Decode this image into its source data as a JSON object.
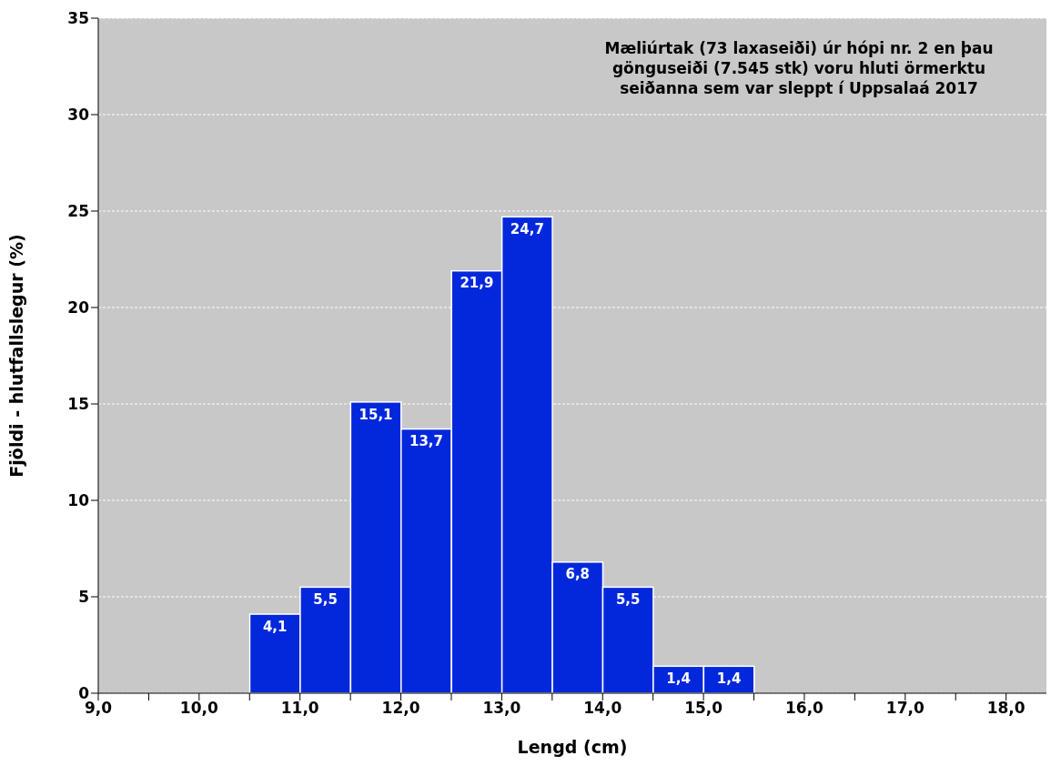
{
  "chart_data": {
    "type": "histogram",
    "xlabel": "Lengd (cm)",
    "ylabel": "Fjöldi - hlutfallslegur (%)",
    "annotations": [
      "Mæliúrtak (73 laxaseiði) úr hópi nr. 2 en þau gönguseiði (7.545 stk) voru hluti örmerktu seiðanna sem var sleppt í Uppsalaá 2017"
    ],
    "bins": [
      10.5,
      11.0,
      11.5,
      12.0,
      12.5,
      13.0,
      13.5,
      14.0,
      14.5,
      15.0,
      15.5
    ],
    "values": [
      4.1,
      5.5,
      15.1,
      13.7,
      21.9,
      24.7,
      6.8,
      5.5,
      1.4,
      1.4
    ],
    "value_labels": [
      "4,1",
      "5,5",
      "15,1",
      "13,7",
      "21,9",
      "24,7",
      "6,8",
      "5,5",
      "1,4",
      "1,4"
    ],
    "color": "#0328dc",
    "xlim": [
      9,
      18.4
    ],
    "xticks": [
      {
        "value": 9,
        "label": "9,0"
      },
      {
        "value": 9.5,
        "label": null
      },
      {
        "value": 10,
        "label": "10,0"
      },
      {
        "value": 10.5,
        "label": null
      },
      {
        "value": 11,
        "label": "11,0"
      },
      {
        "value": 11.5,
        "label": null
      },
      {
        "value": 12,
        "label": "12,0"
      },
      {
        "value": 12.5,
        "label": null
      },
      {
        "value": 13,
        "label": "13,0"
      },
      {
        "value": 13.5,
        "label": null
      },
      {
        "value": 14,
        "label": "14,0"
      },
      {
        "value": 14.5,
        "label": null
      },
      {
        "value": 15,
        "label": "15,0"
      },
      {
        "value": 15.5,
        "label": null
      },
      {
        "value": 16,
        "label": "16,0"
      },
      {
        "value": 16.5,
        "label": null
      },
      {
        "value": 17,
        "label": "17,0"
      },
      {
        "value": 17.5,
        "label": null
      },
      {
        "value": 18,
        "label": "18,0"
      }
    ],
    "ylim": [
      0,
      35
    ],
    "yticks": [
      0,
      5,
      10,
      15,
      20,
      25,
      30,
      35
    ],
    "grid": "y",
    "legend": false
  }
}
